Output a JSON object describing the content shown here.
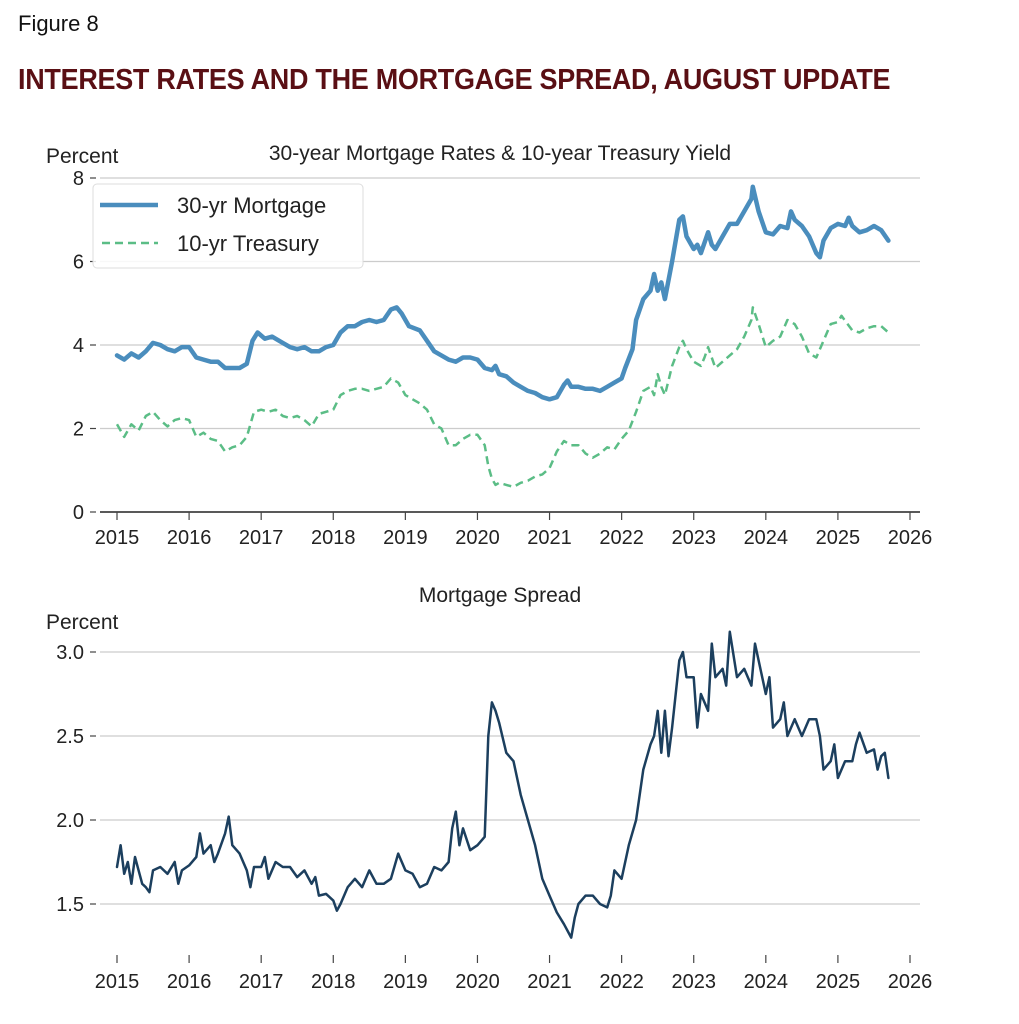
{
  "figure": {
    "label": "Figure 8",
    "title": "INTEREST RATES AND THE MORTGAGE SPREAD, AUGUST UPDATE"
  },
  "colors": {
    "title": "#5a0f14",
    "mortgage": "#4a8dbd",
    "treasury": "#5bbd86",
    "spread": "#1c3f5e",
    "grid": "#cccccc"
  },
  "chart_data": [
    {
      "type": "line",
      "title": "30-year Mortgage Rates & 10-year Treasury Yield",
      "ylabel": "Percent",
      "xlabel": "",
      "xlim": [
        2014.5,
        2026.1
      ],
      "ylim": [
        0,
        8
      ],
      "xticks": [
        2015,
        2016,
        2017,
        2018,
        2019,
        2020,
        2021,
        2022,
        2023,
        2024,
        2025,
        2026
      ],
      "yticks": [
        0,
        2,
        4,
        6,
        8
      ],
      "grid": "horizontal",
      "legend": "top-left",
      "series": [
        {
          "name": "30-yr Mortgage",
          "style": "solid",
          "x": [
            2015.0,
            2015.1,
            2015.2,
            2015.3,
            2015.4,
            2015.5,
            2015.6,
            2015.7,
            2015.8,
            2015.9,
            2016.0,
            2016.1,
            2016.2,
            2016.3,
            2016.4,
            2016.5,
            2016.6,
            2016.7,
            2016.8,
            2016.88,
            2016.95,
            2017.05,
            2017.15,
            2017.3,
            2017.4,
            2017.5,
            2017.6,
            2017.7,
            2017.8,
            2017.9,
            2018.0,
            2018.1,
            2018.2,
            2018.3,
            2018.4,
            2018.5,
            2018.6,
            2018.7,
            2018.8,
            2018.88,
            2018.95,
            2019.05,
            2019.2,
            2019.3,
            2019.4,
            2019.5,
            2019.6,
            2019.7,
            2019.8,
            2019.9,
            2020.0,
            2020.1,
            2020.2,
            2020.25,
            2020.3,
            2020.4,
            2020.5,
            2020.6,
            2020.7,
            2020.8,
            2020.9,
            2021.0,
            2021.1,
            2021.2,
            2021.25,
            2021.3,
            2021.4,
            2021.5,
            2021.6,
            2021.7,
            2021.8,
            2021.9,
            2022.0,
            2022.05,
            2022.15,
            2022.2,
            2022.3,
            2022.4,
            2022.45,
            2022.5,
            2022.55,
            2022.6,
            2022.7,
            2022.8,
            2022.85,
            2022.9,
            2023.0,
            2023.05,
            2023.1,
            2023.2,
            2023.25,
            2023.3,
            2023.4,
            2023.5,
            2023.6,
            2023.7,
            2023.8,
            2023.82,
            2023.9,
            2024.0,
            2024.1,
            2024.2,
            2024.3,
            2024.35,
            2024.4,
            2024.5,
            2024.6,
            2024.7,
            2024.75,
            2024.8,
            2024.9,
            2025.0,
            2025.1,
            2025.15,
            2025.2,
            2025.3,
            2025.4,
            2025.5,
            2025.6,
            2025.7
          ],
          "y": [
            3.75,
            3.65,
            3.8,
            3.7,
            3.85,
            4.05,
            4.0,
            3.9,
            3.85,
            3.95,
            3.95,
            3.7,
            3.65,
            3.6,
            3.6,
            3.45,
            3.45,
            3.45,
            3.55,
            4.1,
            4.3,
            4.15,
            4.2,
            4.05,
            3.95,
            3.9,
            3.95,
            3.85,
            3.85,
            3.95,
            4.0,
            4.3,
            4.45,
            4.45,
            4.55,
            4.6,
            4.55,
            4.6,
            4.85,
            4.9,
            4.75,
            4.45,
            4.35,
            4.1,
            3.85,
            3.75,
            3.65,
            3.6,
            3.7,
            3.7,
            3.65,
            3.45,
            3.4,
            3.5,
            3.3,
            3.25,
            3.1,
            3.0,
            2.9,
            2.85,
            2.75,
            2.7,
            2.75,
            3.05,
            3.15,
            3.0,
            3.0,
            2.95,
            2.95,
            2.9,
            3.0,
            3.1,
            3.2,
            3.45,
            3.9,
            4.6,
            5.1,
            5.3,
            5.7,
            5.3,
            5.5,
            5.1,
            6.0,
            7.0,
            7.08,
            6.6,
            6.3,
            6.4,
            6.2,
            6.7,
            6.4,
            6.3,
            6.6,
            6.9,
            6.9,
            7.2,
            7.5,
            7.79,
            7.2,
            6.7,
            6.65,
            6.85,
            6.8,
            7.2,
            7.0,
            6.85,
            6.6,
            6.2,
            6.1,
            6.5,
            6.8,
            6.9,
            6.85,
            7.05,
            6.85,
            6.7,
            6.75,
            6.85,
            6.75,
            6.5
          ]
        },
        {
          "name": "10-yr Treasury",
          "style": "dashed",
          "x": [
            2015.0,
            2015.1,
            2015.2,
            2015.3,
            2015.4,
            2015.5,
            2015.6,
            2015.7,
            2015.8,
            2015.9,
            2016.0,
            2016.1,
            2016.2,
            2016.3,
            2016.4,
            2016.5,
            2016.6,
            2016.7,
            2016.8,
            2016.9,
            2017.0,
            2017.1,
            2017.2,
            2017.3,
            2017.4,
            2017.5,
            2017.6,
            2017.7,
            2017.8,
            2017.9,
            2018.0,
            2018.1,
            2018.2,
            2018.3,
            2018.4,
            2018.5,
            2018.6,
            2018.7,
            2018.8,
            2018.9,
            2019.0,
            2019.1,
            2019.2,
            2019.3,
            2019.4,
            2019.5,
            2019.6,
            2019.7,
            2019.8,
            2019.9,
            2020.0,
            2020.1,
            2020.15,
            2020.2,
            2020.25,
            2020.3,
            2020.4,
            2020.5,
            2020.6,
            2020.7,
            2020.8,
            2020.9,
            2021.0,
            2021.1,
            2021.2,
            2021.3,
            2021.4,
            2021.5,
            2021.6,
            2021.7,
            2021.8,
            2021.9,
            2022.0,
            2022.1,
            2022.2,
            2022.3,
            2022.4,
            2022.45,
            2022.5,
            2022.55,
            2022.6,
            2022.7,
            2022.8,
            2022.85,
            2022.9,
            2023.0,
            2023.1,
            2023.15,
            2023.2,
            2023.3,
            2023.4,
            2023.5,
            2023.6,
            2023.7,
            2023.8,
            2023.82,
            2023.9,
            2024.0,
            2024.1,
            2024.2,
            2024.3,
            2024.4,
            2024.5,
            2024.6,
            2024.7,
            2024.8,
            2024.9,
            2025.0,
            2025.05,
            2025.2,
            2025.3,
            2025.4,
            2025.5,
            2025.6,
            2025.7
          ],
          "y": [
            2.1,
            1.8,
            2.1,
            1.95,
            2.3,
            2.4,
            2.2,
            2.05,
            2.2,
            2.25,
            2.2,
            1.8,
            1.9,
            1.75,
            1.7,
            1.45,
            1.55,
            1.6,
            1.8,
            2.4,
            2.45,
            2.4,
            2.45,
            2.3,
            2.25,
            2.3,
            2.2,
            2.05,
            2.35,
            2.4,
            2.45,
            2.8,
            2.9,
            2.95,
            2.95,
            2.9,
            2.95,
            3.0,
            3.2,
            3.1,
            2.8,
            2.7,
            2.6,
            2.45,
            2.1,
            2.0,
            1.6,
            1.6,
            1.75,
            1.85,
            1.85,
            1.6,
            1.1,
            0.8,
            0.65,
            0.7,
            0.65,
            0.6,
            0.7,
            0.75,
            0.85,
            0.9,
            1.05,
            1.45,
            1.7,
            1.6,
            1.6,
            1.4,
            1.3,
            1.4,
            1.55,
            1.5,
            1.75,
            1.95,
            2.4,
            2.9,
            3.0,
            2.8,
            3.3,
            3.0,
            2.8,
            3.5,
            3.95,
            4.1,
            3.9,
            3.6,
            3.5,
            3.7,
            3.95,
            3.45,
            3.6,
            3.75,
            3.9,
            4.2,
            4.6,
            4.9,
            4.5,
            3.95,
            4.1,
            4.2,
            4.6,
            4.5,
            4.2,
            3.8,
            3.7,
            4.1,
            4.5,
            4.55,
            4.7,
            4.35,
            4.3,
            4.4,
            4.45,
            4.45,
            4.3
          ]
        }
      ]
    },
    {
      "type": "line",
      "title": "Mortgage Spread",
      "ylabel": "Percent",
      "xlabel": "",
      "xlim": [
        2014.5,
        2026.1
      ],
      "ylim": [
        1.3,
        3.15
      ],
      "xticks": [
        2015,
        2016,
        2017,
        2018,
        2019,
        2020,
        2021,
        2022,
        2023,
        2024,
        2025,
        2026
      ],
      "yticks": [
        1.5,
        2.0,
        2.5,
        3.0
      ],
      "grid": "horizontal",
      "legend": "none",
      "series": [
        {
          "name": "Mortgage Spread",
          "style": "solid",
          "x": [
            2015.0,
            2015.05,
            2015.1,
            2015.15,
            2015.2,
            2015.25,
            2015.3,
            2015.35,
            2015.4,
            2015.45,
            2015.5,
            2015.6,
            2015.7,
            2015.8,
            2015.85,
            2015.9,
            2016.0,
            2016.1,
            2016.15,
            2016.2,
            2016.3,
            2016.35,
            2016.4,
            2016.5,
            2016.55,
            2016.6,
            2016.7,
            2016.8,
            2016.85,
            2016.9,
            2017.0,
            2017.05,
            2017.1,
            2017.2,
            2017.3,
            2017.4,
            2017.5,
            2017.6,
            2017.7,
            2017.75,
            2017.8,
            2017.9,
            2018.0,
            2018.05,
            2018.1,
            2018.2,
            2018.3,
            2018.4,
            2018.5,
            2018.6,
            2018.7,
            2018.8,
            2018.9,
            2018.95,
            2019.0,
            2019.1,
            2019.2,
            2019.3,
            2019.4,
            2019.5,
            2019.6,
            2019.65,
            2019.7,
            2019.75,
            2019.8,
            2019.9,
            2020.0,
            2020.1,
            2020.15,
            2020.2,
            2020.25,
            2020.3,
            2020.4,
            2020.5,
            2020.6,
            2020.7,
            2020.8,
            2020.9,
            2021.0,
            2021.1,
            2021.2,
            2021.3,
            2021.35,
            2021.4,
            2021.5,
            2021.6,
            2021.7,
            2021.8,
            2021.85,
            2021.9,
            2022.0,
            2022.1,
            2022.2,
            2022.3,
            2022.4,
            2022.45,
            2022.5,
            2022.55,
            2022.6,
            2022.65,
            2022.7,
            2022.8,
            2022.85,
            2022.9,
            2023.0,
            2023.05,
            2023.1,
            2023.2,
            2023.25,
            2023.3,
            2023.4,
            2023.45,
            2023.5,
            2023.6,
            2023.7,
            2023.8,
            2023.85,
            2023.9,
            2024.0,
            2024.05,
            2024.1,
            2024.2,
            2024.25,
            2024.3,
            2024.4,
            2024.5,
            2024.6,
            2024.7,
            2024.75,
            2024.8,
            2024.9,
            2024.95,
            2025.0,
            2025.1,
            2025.2,
            2025.25,
            2025.3,
            2025.4,
            2025.5,
            2025.55,
            2025.6,
            2025.65,
            2025.7
          ],
          "y": [
            1.72,
            1.85,
            1.68,
            1.75,
            1.62,
            1.78,
            1.7,
            1.62,
            1.6,
            1.57,
            1.7,
            1.72,
            1.68,
            1.75,
            1.62,
            1.7,
            1.73,
            1.78,
            1.92,
            1.8,
            1.85,
            1.75,
            1.8,
            1.92,
            2.02,
            1.85,
            1.8,
            1.7,
            1.6,
            1.72,
            1.72,
            1.78,
            1.65,
            1.75,
            1.72,
            1.72,
            1.66,
            1.7,
            1.62,
            1.66,
            1.55,
            1.56,
            1.52,
            1.46,
            1.5,
            1.6,
            1.65,
            1.6,
            1.7,
            1.62,
            1.62,
            1.65,
            1.8,
            1.75,
            1.7,
            1.68,
            1.6,
            1.62,
            1.72,
            1.7,
            1.75,
            1.95,
            2.05,
            1.85,
            1.95,
            1.82,
            1.85,
            1.9,
            2.5,
            2.7,
            2.65,
            2.58,
            2.4,
            2.35,
            2.15,
            2.0,
            1.85,
            1.65,
            1.55,
            1.45,
            1.38,
            1.3,
            1.42,
            1.5,
            1.55,
            1.55,
            1.5,
            1.48,
            1.55,
            1.7,
            1.65,
            1.85,
            2.0,
            2.3,
            2.45,
            2.5,
            2.65,
            2.4,
            2.65,
            2.38,
            2.55,
            2.95,
            3.0,
            2.85,
            2.85,
            2.55,
            2.75,
            2.65,
            3.05,
            2.85,
            2.9,
            2.8,
            3.12,
            2.85,
            2.9,
            2.8,
            3.05,
            2.95,
            2.75,
            2.85,
            2.55,
            2.6,
            2.7,
            2.5,
            2.6,
            2.5,
            2.6,
            2.6,
            2.5,
            2.3,
            2.35,
            2.45,
            2.25,
            2.35,
            2.35,
            2.45,
            2.52,
            2.4,
            2.42,
            2.3,
            2.38,
            2.4,
            2.25
          ]
        }
      ]
    }
  ]
}
